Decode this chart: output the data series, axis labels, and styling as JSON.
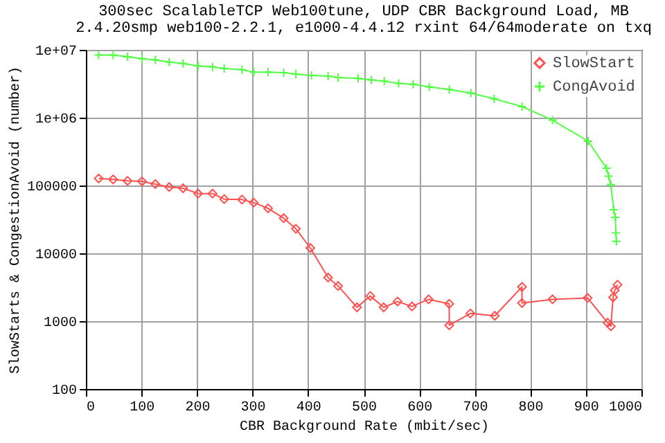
{
  "chart_data": {
    "type": "line",
    "title": "300sec ScalableTCP Web100tune, UDP CBR Background Load, MB",
    "subtitle": "2.4.20smp web100-2.2.1, e1000-4.4.12 rxint 64/64moderate on txq",
    "xlabel": "CBR Background Rate (mbit/sec)",
    "ylabel": "SlowStarts & CongestionAvoid (number)",
    "xlim": [
      0,
      1000
    ],
    "xticks": [
      0,
      100,
      200,
      300,
      400,
      500,
      600,
      700,
      800,
      900,
      1000
    ],
    "ylim": [
      100,
      10000000
    ],
    "yticks": [
      100,
      1000,
      10000,
      100000,
      {
        "value": 1000000,
        "label": "1e+06"
      },
      {
        "value": 10000000,
        "label": "1e+07"
      }
    ],
    "log": "y",
    "grid": true,
    "legend": "top right",
    "series": [
      {
        "name": "SlowStart",
        "color": "#ff5050",
        "marker": "diamond",
        "x": [
          23,
          49,
          75,
          101,
          125,
          150,
          175,
          202,
          228,
          249,
          281,
          302,
          328,
          356,
          378,
          404,
          436,
          454,
          488,
          512,
          536,
          561,
          587,
          617,
          654,
          654,
          692,
          736,
          785,
          785,
          840,
          903,
          939,
          945,
          949,
          952,
          957
        ],
        "values": [
          127000,
          123000,
          117000,
          115000,
          105000,
          95000,
          91000,
          76000,
          76000,
          63000,
          62000,
          56000,
          46000,
          33000,
          23000,
          12000,
          4400,
          3300,
          1600,
          2350,
          1600,
          1950,
          1650,
          2100,
          1800,
          870,
          1300,
          1200,
          3200,
          1850,
          2100,
          2200,
          950,
          840,
          2250,
          2850,
          3450
        ]
      },
      {
        "name": "CongAvoid",
        "color": "#50ff40",
        "marker": "cross",
        "x": [
          23,
          49,
          75,
          101,
          125,
          150,
          175,
          202,
          228,
          249,
          281,
          302,
          328,
          356,
          378,
          406,
          436,
          454,
          490,
          514,
          537,
          563,
          589,
          618,
          654,
          693,
          735,
          785,
          840,
          904,
          937,
          941,
          945,
          950,
          953,
          954,
          955
        ],
        "values": [
          8400000,
          8400000,
          7900000,
          7400000,
          7100000,
          6600000,
          6300000,
          5800000,
          5600000,
          5300000,
          5100000,
          4700000,
          4700000,
          4600000,
          4400000,
          4200000,
          4100000,
          3900000,
          3800000,
          3600000,
          3450000,
          3200000,
          3100000,
          2850000,
          2600000,
          2300000,
          1900000,
          1460000,
          920000,
          450000,
          180000,
          137000,
          103000,
          44000,
          34000,
          20000,
          15000
        ]
      }
    ]
  }
}
